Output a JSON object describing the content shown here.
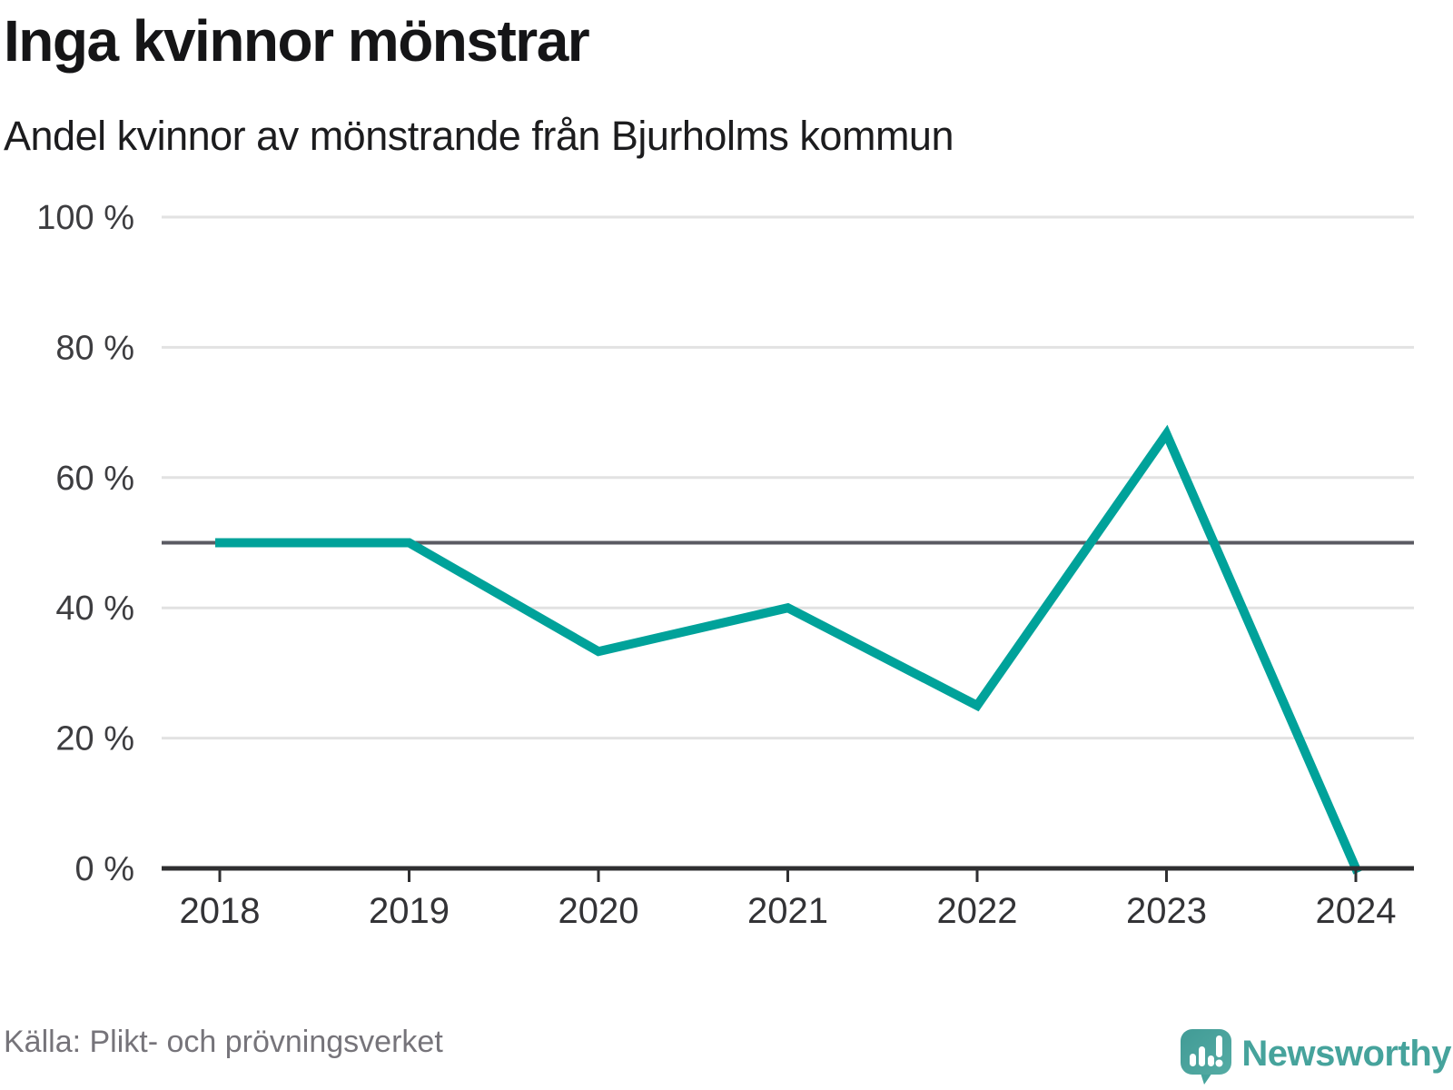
{
  "header": {
    "title": "Inga kvinnor mönstrar",
    "subtitle": "Andel kvinnor av mönstrande från Bjurholms kommun"
  },
  "chart_data": {
    "type": "line",
    "title": "Inga kvinnor mönstrar",
    "subtitle": "Andel kvinnor av mönstrande från Bjurholms kommun",
    "x": [
      "2018",
      "2019",
      "2020",
      "2021",
      "2022",
      "2023",
      "2024"
    ],
    "series": [
      {
        "name": "Andel kvinnor av mönstrande, Bjurholms kommun",
        "values": [
          50,
          50,
          33.3,
          40,
          25,
          66.7,
          0
        ]
      }
    ],
    "unit": "%",
    "ylim": [
      0,
      100
    ],
    "yticks": [
      0,
      20,
      40,
      60,
      80,
      100
    ],
    "ytick_labels": [
      "0 %",
      "20 %",
      "40 %",
      "60 %",
      "80 %",
      "100 %"
    ],
    "reference_line": 50,
    "grid": "horizontal",
    "legend": "none",
    "line_color": "#00a29a"
  },
  "footer": {
    "source": "Källa: Plikt- och prövningsverket",
    "brand": "Newsworthy"
  },
  "theme": {
    "accent": "#00a29a",
    "brand_teal": "#46a39c",
    "brand_teal_light": "#54aba4",
    "brand_teal_dark": "#3f9b95",
    "reference_line_color": "#5b5b63",
    "gridline_color": "#e2e2e2",
    "axis_color": "#2f2f31",
    "text_dark": "#151517",
    "text_gray": "#76747a"
  }
}
